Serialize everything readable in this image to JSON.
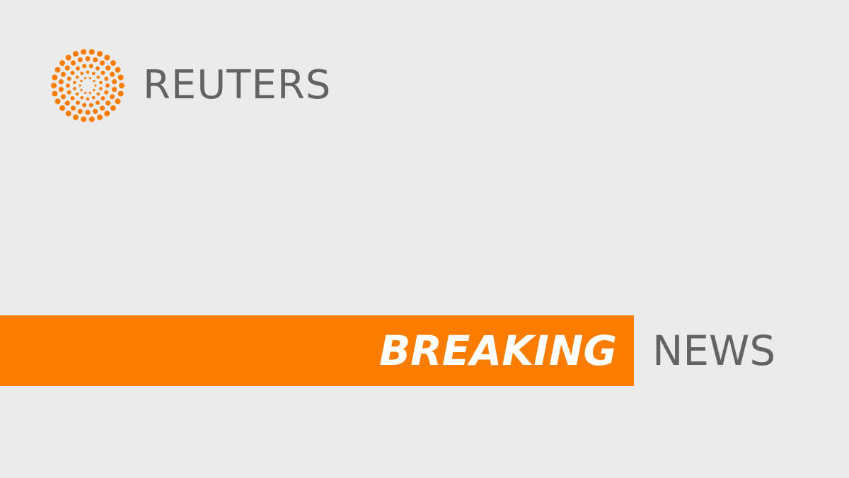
{
  "brand": {
    "name": "REUTERS",
    "logo_icon": "dotted-sunburst-icon"
  },
  "banner": {
    "highlight_word": "BREAKING",
    "plain_word": "NEWS"
  },
  "colors": {
    "background": "#ebebeb",
    "accent": "#fa7d00",
    "text_gray": "#636363",
    "text_white": "#ffffff"
  }
}
